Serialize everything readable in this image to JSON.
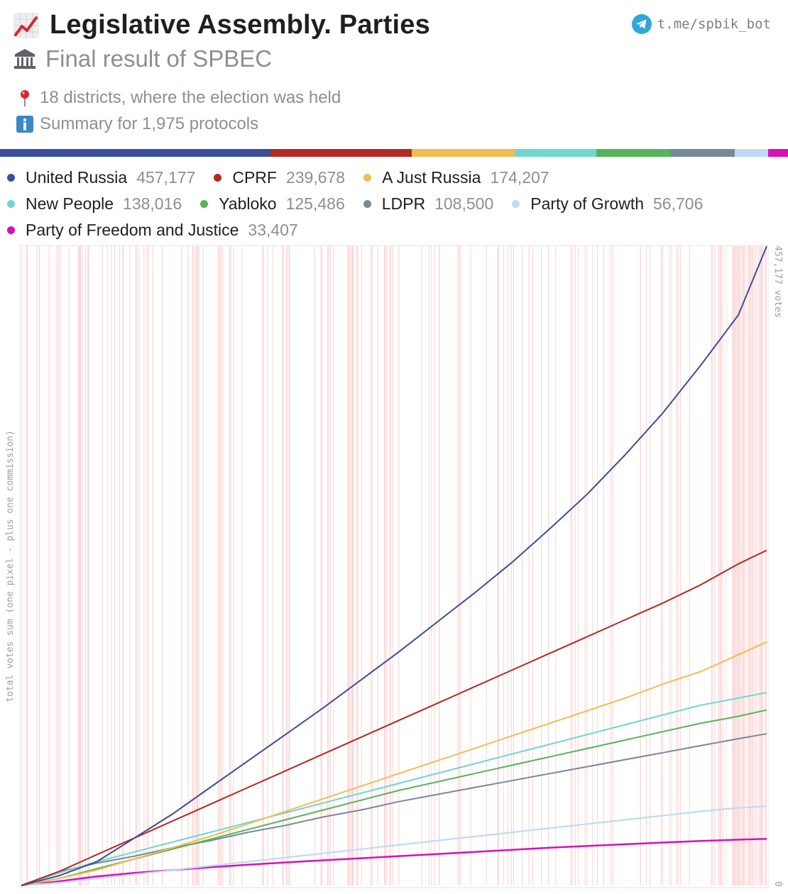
{
  "header": {
    "title": "Legislative Assembly. Parties",
    "title_icon": "chart-increasing-icon",
    "subtitle": "Final result of SPBEC",
    "subtitle_icon": "classical-building-icon",
    "bot_link": "t.me/spbik_bot",
    "bot_icon": "telegram-icon"
  },
  "info": {
    "districts": "18 districts, where the election was held",
    "districts_icon": "round-pushpin-icon",
    "summary": "Summary for 1,975 protocols",
    "summary_icon": "information-icon"
  },
  "chart_data": {
    "type": "line",
    "title": "Legislative Assembly. Parties",
    "xlabel": "",
    "ylabel": "total votes sum (one pixel - plus one commission)",
    "y_top_label": "457,177 votes",
    "y_bottom_label": "0",
    "x_unit": "commissions (protocols)",
    "x_max": 1975,
    "ylim": [
      0,
      457177
    ],
    "x": [
      0,
      100,
      200,
      300,
      400,
      500,
      600,
      700,
      800,
      900,
      1000,
      1100,
      1200,
      1300,
      1400,
      1500,
      1600,
      1700,
      1800,
      1900,
      1975
    ],
    "series": [
      {
        "name": "United Russia",
        "total": 457177,
        "total_label": "457,177",
        "color": "#3a4f9a",
        "values": [
          0,
          7000,
          17000,
          34000,
          51000,
          70000,
          89000,
          108000,
          127000,
          147000,
          167000,
          188000,
          209000,
          231000,
          255000,
          280000,
          308000,
          338000,
          372000,
          408000,
          457177
        ]
      },
      {
        "name": "CPRF",
        "total": 239678,
        "total_label": "239,678",
        "color": "#b22a22",
        "values": [
          0,
          10000,
          22000,
          34000,
          46000,
          58000,
          70000,
          82000,
          94000,
          106000,
          118000,
          130000,
          142000,
          154000,
          166000,
          178000,
          190000,
          202000,
          215000,
          230000,
          239678
        ]
      },
      {
        "name": "A Just Russia",
        "total": 174207,
        "total_label": "174,207",
        "color": "#f2bc52",
        "values": [
          0,
          5000,
          11000,
          19000,
          27000,
          35000,
          44000,
          53000,
          62000,
          71000,
          80000,
          89000,
          98000,
          107000,
          116000,
          125000,
          134000,
          144000,
          153000,
          165000,
          174207
        ]
      },
      {
        "name": "New People",
        "total": 138016,
        "total_label": "138,016",
        "color": "#6dd7d0",
        "values": [
          0,
          9000,
          17000,
          24000,
          31000,
          38000,
          45000,
          52000,
          59000,
          66000,
          73000,
          80000,
          87000,
          94000,
          101000,
          108000,
          115000,
          122000,
          129000,
          134000,
          138016
        ]
      },
      {
        "name": "Yabloko",
        "total": 125486,
        "total_label": "125,486",
        "color": "#55b45c",
        "values": [
          0,
          5000,
          12000,
          19000,
          26000,
          33000,
          40000,
          47000,
          54000,
          61000,
          68000,
          74000,
          80000,
          86000,
          92000,
          98000,
          104000,
          110000,
          116000,
          121000,
          125486
        ]
      },
      {
        "name": "LDPR",
        "total": 108500,
        "total_label": "108,500",
        "color": "#75899a",
        "values": [
          0,
          10000,
          16000,
          21000,
          27000,
          32000,
          38000,
          43000,
          49000,
          54000,
          60000,
          65000,
          70000,
          75000,
          80000,
          85000,
          90000,
          95000,
          100000,
          105000,
          108500
        ]
      },
      {
        "name": "Party of Growth",
        "total": 56706,
        "total_label": "56,706",
        "color": "#bcdcf6",
        "values": [
          0,
          2000,
          5000,
          8000,
          11000,
          14000,
          17000,
          20000,
          23000,
          26000,
          29000,
          32000,
          35000,
          38000,
          41000,
          44000,
          47000,
          50000,
          53000,
          55500,
          56706
        ]
      },
      {
        "name": "Party of Freedom and Justice",
        "total": 33407,
        "total_label": "33,407",
        "color": "#d90fba",
        "values": [
          0,
          3000,
          6500,
          9000,
          11000,
          13000,
          14800,
          16500,
          18000,
          19500,
          21000,
          22500,
          24000,
          25500,
          27000,
          28300,
          29500,
          30700,
          31800,
          32800,
          33407
        ]
      }
    ]
  }
}
